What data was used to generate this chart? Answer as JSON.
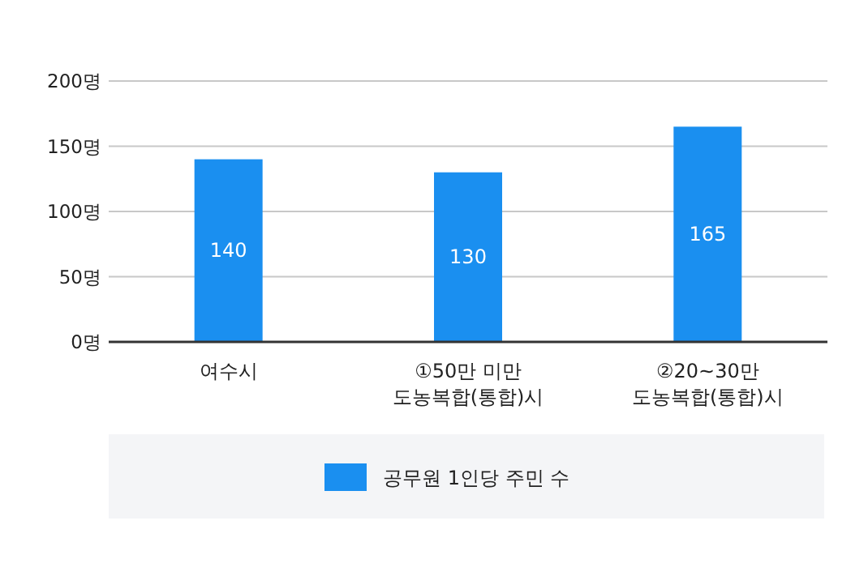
{
  "chart_data": {
    "type": "bar",
    "categories": [
      "여수시",
      "①50만 미만\n도농복합(통합)시",
      "②20~30만\n도농복합(통합)시"
    ],
    "series": [
      {
        "name": "공무원 1인당 주민 수",
        "color": "#1a8ff0",
        "values": [
          140,
          130,
          165
        ]
      }
    ],
    "ylim": [
      0,
      200
    ],
    "yticks": [
      {
        "value": 0,
        "label": "0명"
      },
      {
        "value": 50,
        "label": "50명"
      },
      {
        "value": 100,
        "label": "100명"
      },
      {
        "value": 150,
        "label": "150명"
      },
      {
        "value": 200,
        "label": "200명"
      }
    ],
    "grid": "y",
    "data_labels": true,
    "legend": "bottom"
  }
}
